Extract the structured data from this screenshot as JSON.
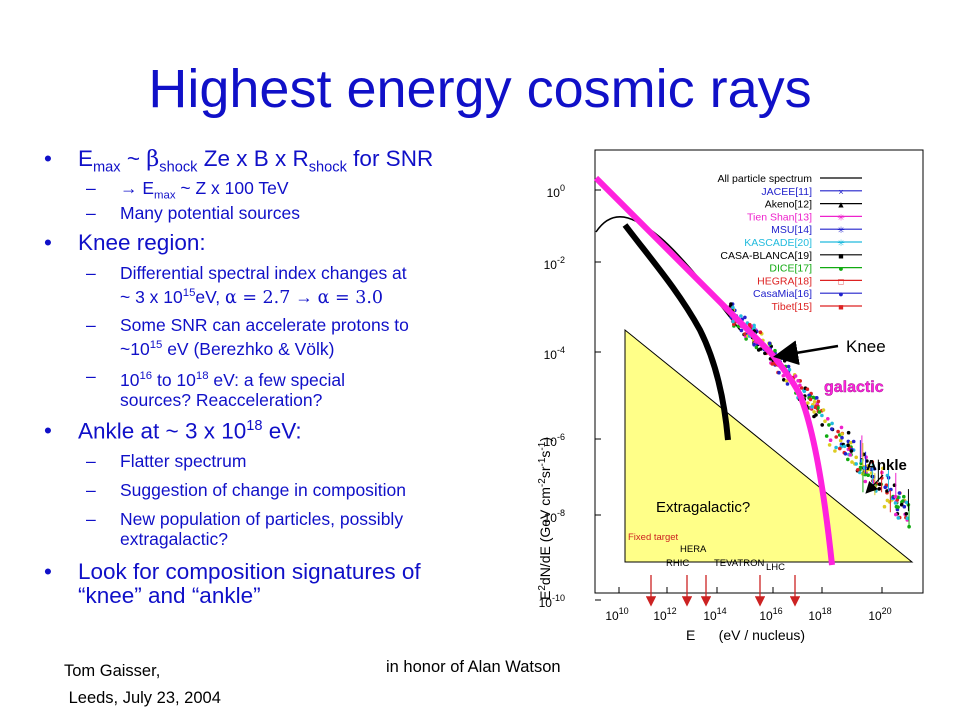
{
  "title": "Highest energy cosmic rays",
  "bullets": {
    "b1": {
      "pre": "E",
      "sub1": "max",
      "mid1": " ~ ",
      "beta": "β",
      "sub2": "shock",
      "mid2": " Ze x B x R",
      "sub3": "shock",
      "post": " for SNR"
    },
    "b1_sub1": {
      "dash": "–",
      "arrow": "→",
      "pre": " E",
      "sub": "max",
      "post": " ~ Z x 100 TeV"
    },
    "b1_sub2": {
      "dash": "–",
      "text": "Many potential sources"
    },
    "b2": "Knee region:",
    "b2_sub1": {
      "dash": "–",
      "line1": "Differential spectral index changes at",
      "pre": "~ 3 x 10",
      "sup": "15",
      "post": "eV, ",
      "alpha1": "α = 2.7",
      "arrow": " → ",
      "alpha2": "α = 3.0"
    },
    "b2_sub2": {
      "dash": "–",
      "line1": "Some SNR can accelerate protons to",
      "pre": "~10",
      "sup": "15",
      "post": " eV (Berezhko & Völk)"
    },
    "b2_sub3": {
      "dash": "–",
      "pre": "10",
      "sup1": "16",
      "mid": " to 10",
      "sup2": "18",
      "post": " eV: a few special",
      "line2": "sources?  Reacceleration?"
    },
    "b3": {
      "pre": "Ankle at ~ 3 x 10",
      "sup": "18",
      "post": " eV:"
    },
    "b3_sub1": {
      "dash": "–",
      "text": "Flatter spectrum"
    },
    "b3_sub2": {
      "dash": "–",
      "text": "Suggestion of change in composition"
    },
    "b3_sub3": {
      "dash": "–",
      "line1": "New population of particles, possibly",
      "line2": "extragalactic?"
    },
    "b4": {
      "line1": "Look for composition signatures of",
      "line2": "“knee” and “ankle”"
    },
    "bullet_char": "•"
  },
  "footer": {
    "left_line1": "Tom Gaisser,",
    "left_line2": "Leeds, July 23, 2004",
    "center": "in honor of Alan Watson"
  },
  "chart": {
    "ylabel_pre": "E",
    "ylabel_sup": "2",
    "ylabel_mid": "dN/dE   (GeV cm",
    "ylabel_sup2": "-2",
    "ylabel_mid2": "sr",
    "ylabel_sup3": "-1",
    "ylabel_mid3": "s",
    "ylabel_sup4": "-1",
    "ylabel_post": ")",
    "xlabel": "E      (eV / nucleus)",
    "legend": [
      {
        "name": "All particle spectrum",
        "color": "#000000"
      },
      {
        "name": "JACEE[11]",
        "color": "#2222cc"
      },
      {
        "name": "Akeno[12]",
        "color": "#000000"
      },
      {
        "name": "Tien Shan[13]",
        "color": "#ee22cc"
      },
      {
        "name": "MSU[14]",
        "color": "#2222cc"
      },
      {
        "name": "KASCADE[20]",
        "color": "#22bbdd"
      },
      {
        "name": "CASA-BLANCA[19]",
        "color": "#000000"
      },
      {
        "name": "DICE[17]",
        "color": "#11aa11"
      },
      {
        "name": "HEGRA[18]",
        "color": "#dd2222"
      },
      {
        "name": "CasaMia[16]",
        "color": "#2222cc"
      },
      {
        "name": "Tibet[15]",
        "color": "#dd2222"
      }
    ],
    "yticks": [
      {
        "base": "10",
        "sup": "0"
      },
      {
        "base": "10",
        "sup": "-2"
      },
      {
        "base": "10",
        "sup": "-4"
      },
      {
        "base": "10",
        "sup": "-6"
      },
      {
        "base": "10",
        "sup": "-8"
      },
      {
        "base": "10",
        "sup": "-10"
      }
    ],
    "xticks": [
      {
        "base": "10",
        "sup": "10"
      },
      {
        "base": "10",
        "sup": "12"
      },
      {
        "base": "10",
        "sup": "14"
      },
      {
        "base": "10",
        "sup": "16"
      },
      {
        "base": "10",
        "sup": "18"
      },
      {
        "base": "10",
        "sup": "20"
      }
    ],
    "accelerators": [
      "Fixed target",
      "HERA",
      "RHIC",
      "TEVATRON",
      "LHC"
    ],
    "annotations": {
      "knee": "Knee",
      "galactic": "galactic",
      "ankle": "Ankle",
      "extragalactic": "Extragalactic?"
    },
    "colors": {
      "triangle": "#ffff88",
      "magenta": "#ff22dd",
      "accelerator": "#cc2222"
    }
  }
}
